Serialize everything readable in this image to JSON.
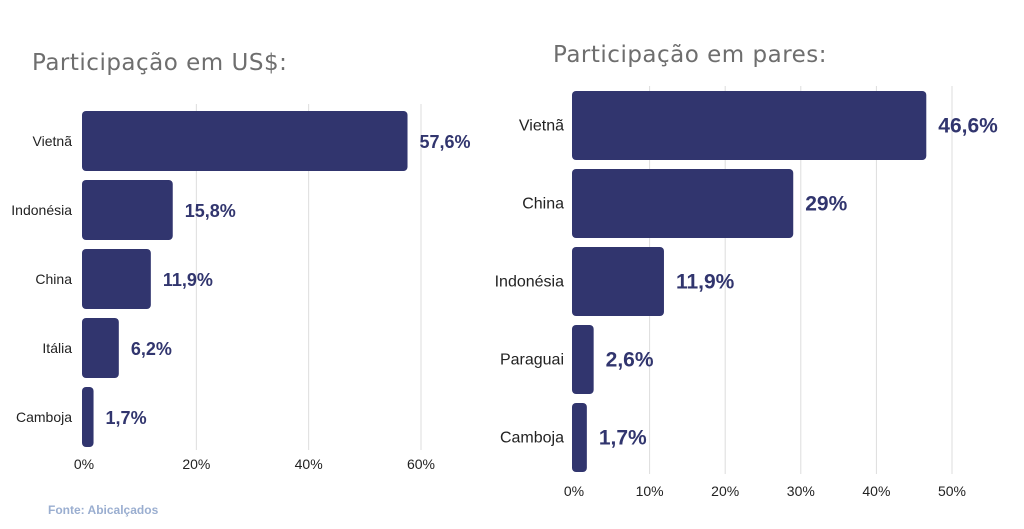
{
  "colors": {
    "bar": "#31356e",
    "grid": "#dddddd",
    "label": "#31356e",
    "text": "#222222"
  },
  "source": "Fonte: Abicalçados",
  "chart_data": [
    {
      "type": "bar",
      "orientation": "horizontal",
      "title": "Participação em US$:",
      "categories": [
        "Vietnã",
        "Indonésia",
        "China",
        "Itália",
        "Camboja"
      ],
      "values": [
        57.6,
        15.8,
        11.9,
        6.2,
        1.7
      ],
      "data_labels": [
        "57,6%",
        "15,8%",
        "11,9%",
        "6,2%",
        "1,7%"
      ],
      "xlim": [
        0,
        60
      ],
      "xticks": [
        0,
        20,
        40,
        60
      ],
      "xtick_labels": [
        "0%",
        "20%",
        "40%",
        "60%"
      ],
      "grid": true
    },
    {
      "type": "bar",
      "orientation": "horizontal",
      "title": "Participação em pares:",
      "categories": [
        "Vietnã",
        "China",
        "Indonésia",
        "Paraguai",
        "Camboja"
      ],
      "values": [
        46.6,
        29,
        11.9,
        2.6,
        1.7
      ],
      "data_labels": [
        "46,6%",
        "29%",
        "11,9%",
        "2,6%",
        "1,7%"
      ],
      "xlim": [
        0,
        50
      ],
      "xticks": [
        0,
        10,
        20,
        30,
        40,
        50
      ],
      "xtick_labels": [
        "0%",
        "10%",
        "20%",
        "30%",
        "40%",
        "50%"
      ],
      "grid": true
    }
  ]
}
